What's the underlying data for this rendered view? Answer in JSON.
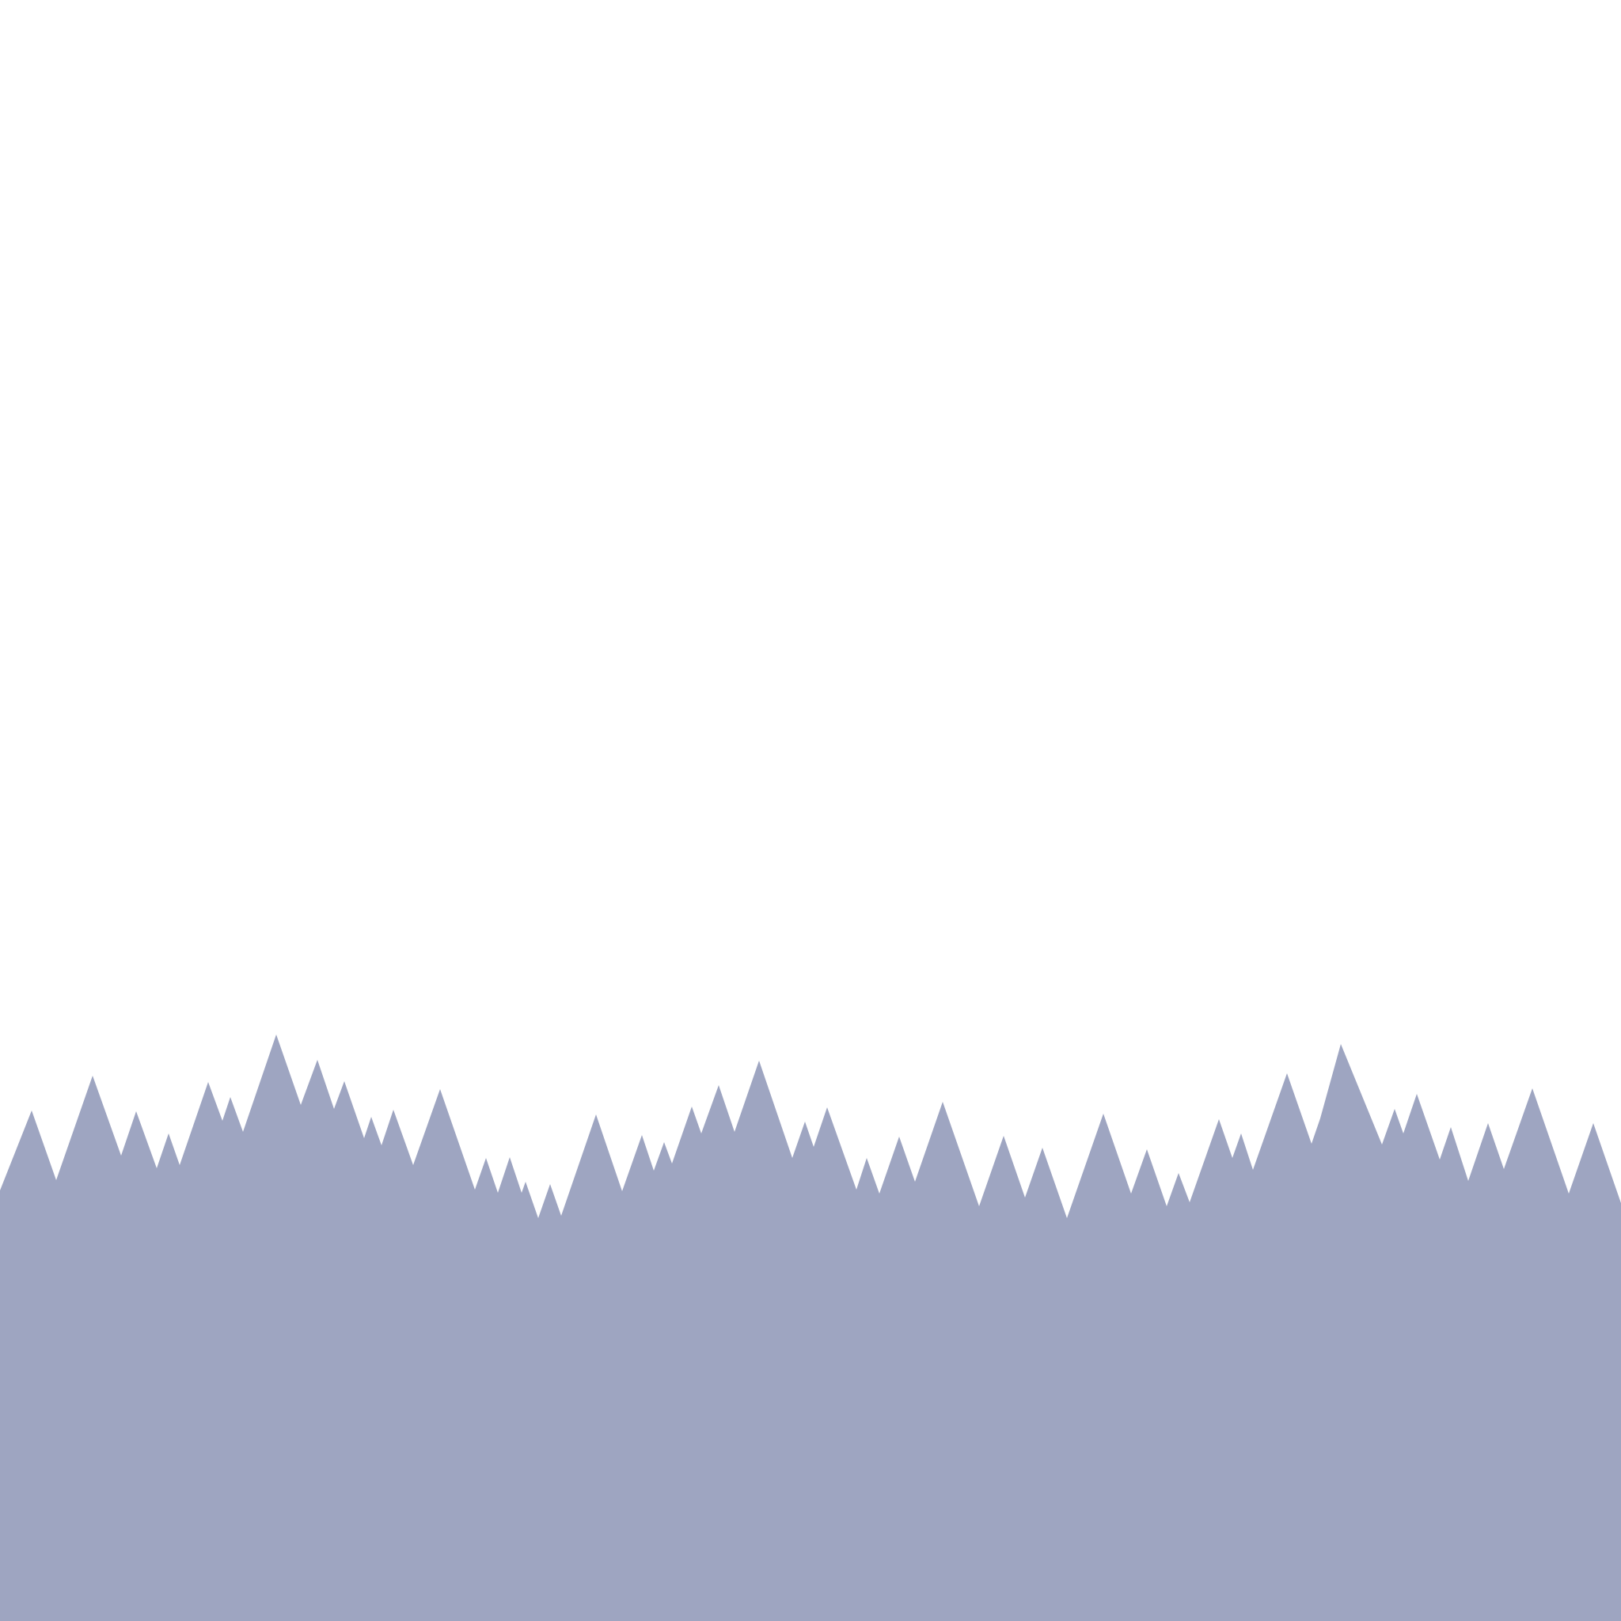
{
  "scene": {
    "background_color": "#ffffff",
    "silhouette_color": "#9ea5c1",
    "shape": "jagged-mountain-silhouette"
  }
}
